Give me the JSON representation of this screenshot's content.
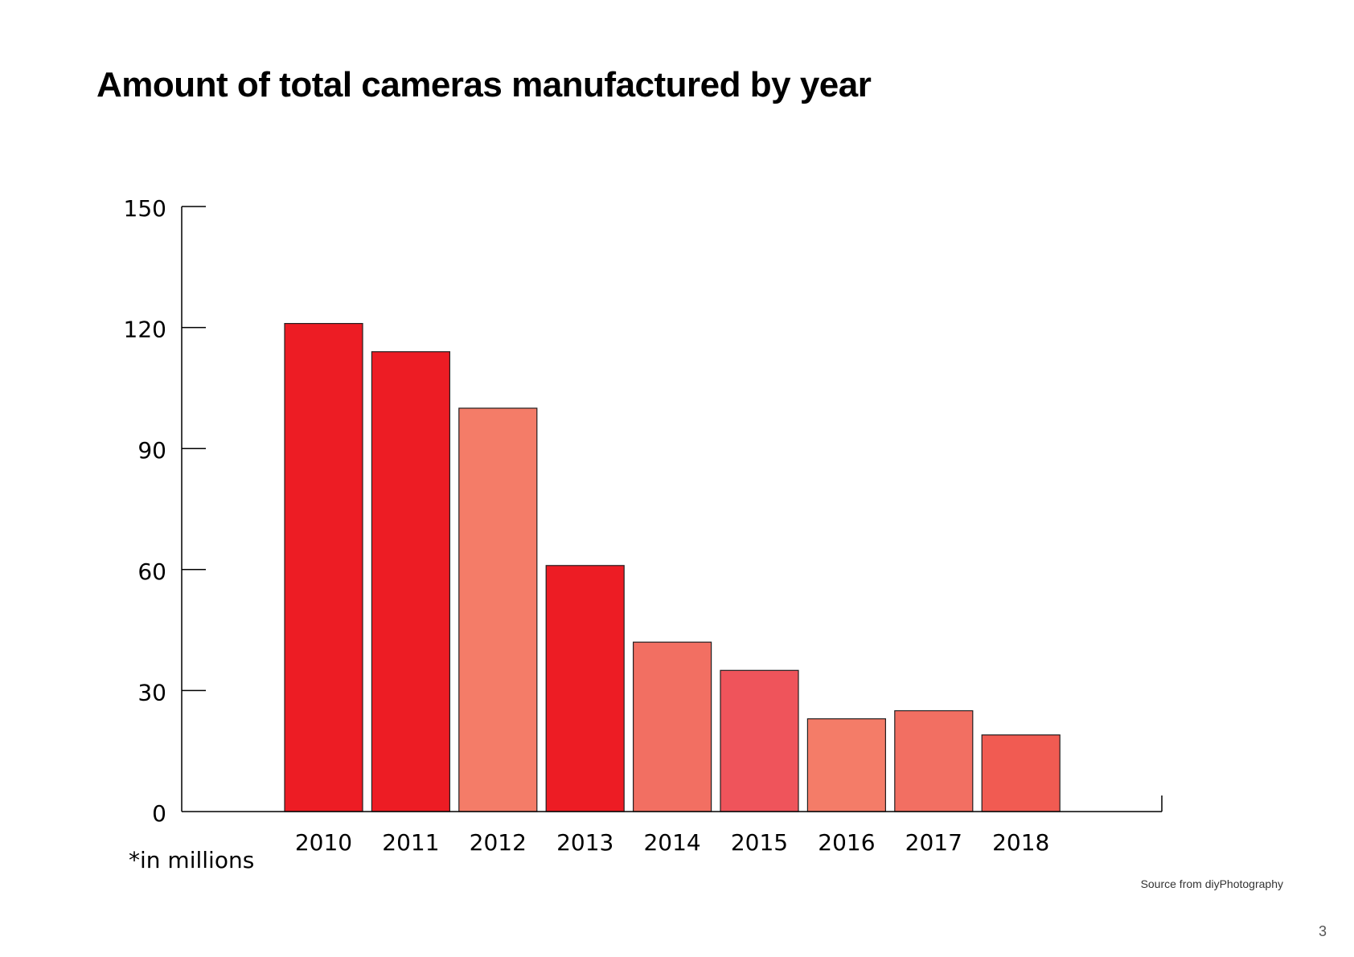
{
  "page": {
    "title": "Amount of total cameras manufactured by year",
    "source": "Source from diyPhotography",
    "page_number": "3"
  },
  "chart_data": {
    "type": "bar",
    "title": "Amount of total cameras manufactured by year",
    "xlabel": "",
    "ylabel": "",
    "unit_note": "*in millions",
    "categories": [
      "2010",
      "2011",
      "2012",
      "2013",
      "2014",
      "2015",
      "2016",
      "2017",
      "2018"
    ],
    "values": [
      121,
      114,
      100,
      61,
      42,
      35,
      23,
      25,
      19
    ],
    "colors": [
      "#ed1c24",
      "#ed1c24",
      "#f47c68",
      "#ed1c24",
      "#f26f62",
      "#ef545b",
      "#f47c68",
      "#f26f62",
      "#f15b52"
    ],
    "y_ticks": [
      0,
      30,
      60,
      90,
      120,
      150
    ],
    "ylim": [
      0,
      150
    ],
    "grid": false,
    "legend": "none"
  }
}
